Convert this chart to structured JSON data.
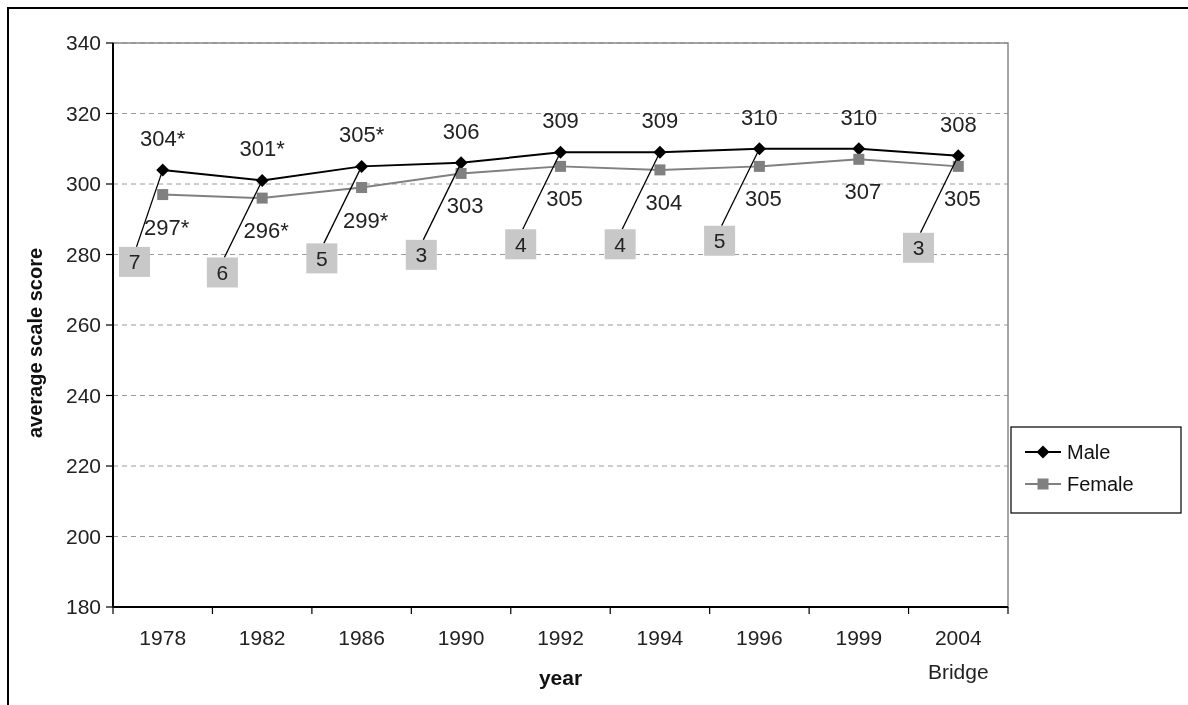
{
  "chart_data": {
    "type": "line",
    "xlabel": "year",
    "ylabel": "average scale score",
    "categories": [
      "1978",
      "1982",
      "1986",
      "1990",
      "1992",
      "1994",
      "1996",
      "1999",
      "2004 Bridge"
    ],
    "series": [
      {
        "name": "Male",
        "color": "#000000",
        "marker": "diamond",
        "values": [
          304,
          301,
          305,
          306,
          309,
          309,
          310,
          310,
          308
        ],
        "value_labels": [
          "304*",
          "301*",
          "305*",
          "306",
          "309",
          "309",
          "310",
          "310",
          "308"
        ]
      },
      {
        "name": "Female",
        "color": "#808080",
        "marker": "square",
        "values": [
          297,
          296,
          299,
          303,
          305,
          304,
          305,
          307,
          305
        ],
        "value_labels": [
          "297*",
          "296*",
          "299*",
          "303",
          "305",
          "304",
          "305",
          "307",
          "305"
        ]
      }
    ],
    "ylim": [
      180,
      340
    ],
    "yticks": [
      180,
      200,
      220,
      240,
      260,
      280,
      300,
      320,
      340
    ],
    "grid": "y",
    "legend": "right",
    "annotations": [
      {
        "text": "7",
        "x": "1978",
        "y": 304
      },
      {
        "text": "6",
        "x": "1982",
        "y": 301
      },
      {
        "text": "5",
        "x": "1986",
        "y": 305
      },
      {
        "text": "3",
        "x": "1990",
        "y": 306
      },
      {
        "text": "4",
        "x": "1992",
        "y": 309
      },
      {
        "text": "4",
        "x": "1994",
        "y": 309
      },
      {
        "text": "5",
        "x": "1996",
        "y": 310
      },
      {
        "text": "3",
        "x": "2004 Bridge",
        "y": 308
      }
    ]
  }
}
